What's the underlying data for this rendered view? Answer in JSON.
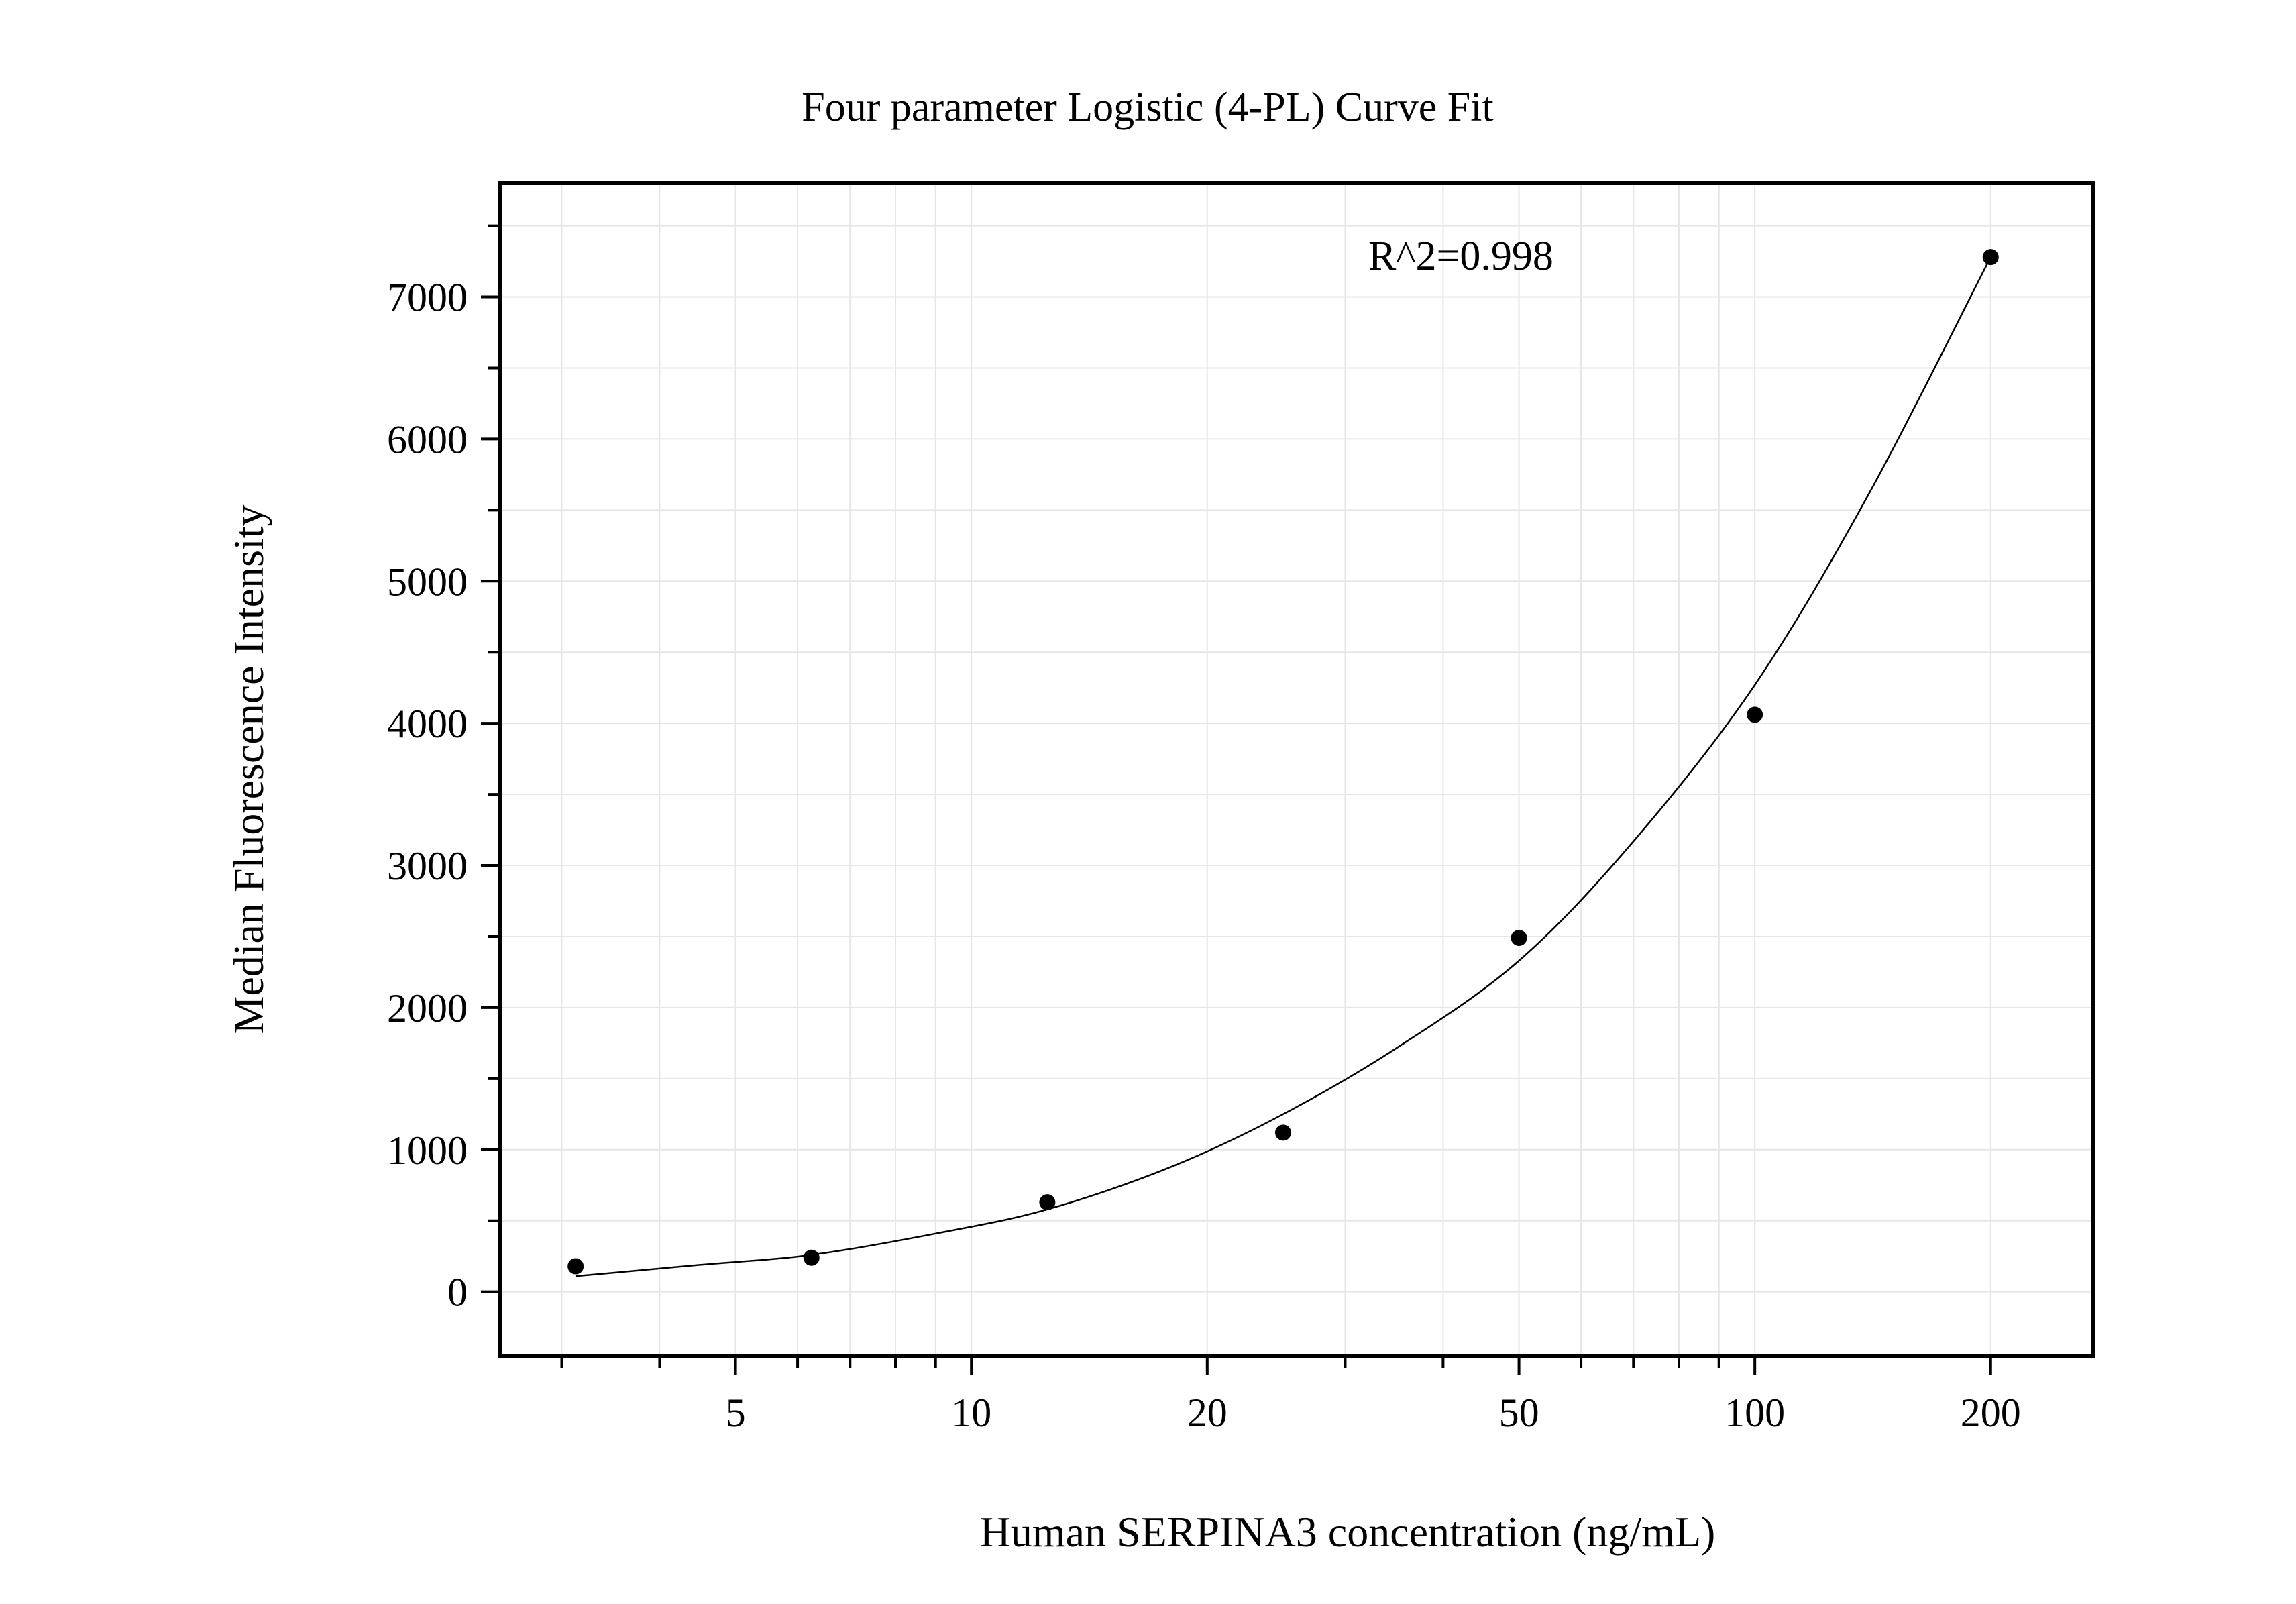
{
  "chart_data": {
    "type": "scatter",
    "title": "Four parameter Logistic (4-PL) Curve Fit",
    "xlabel": "Human SERPINA3 concentration (ng/mL)",
    "ylabel": "Median Fluorescence Intensity",
    "annotation": "R^2=0.998",
    "xscale": "log",
    "xlim": [
      2.5,
      270
    ],
    "ylim": [
      -450,
      7800
    ],
    "xticks": [
      5,
      10,
      20,
      50,
      100,
      200
    ],
    "xtick_labels": [
      "5",
      "10",
      "20",
      "50",
      "100",
      "200"
    ],
    "yticks": [
      0,
      1000,
      2000,
      3000,
      4000,
      5000,
      6000,
      7000
    ],
    "ytick_labels": [
      "0",
      "1000",
      "2000",
      "3000",
      "4000",
      "5000",
      "6000",
      "7000"
    ],
    "grid": true,
    "series": [
      {
        "x": [
          3.125,
          6.25,
          12.5,
          25,
          50,
          100,
          200
        ],
        "y": [
          180,
          240,
          630,
          1120,
          2490,
          4060,
          7280
        ]
      }
    ],
    "fit_curve": {
      "x": [
        3.125,
        4.5,
        6.25,
        9,
        12.5,
        18,
        25,
        35,
        50,
        70,
        100,
        140,
        200
      ],
      "y": [
        110,
        190,
        260,
        410,
        580,
        880,
        1250,
        1720,
        2330,
        3170,
        4270,
        5620,
        7280
      ]
    }
  }
}
